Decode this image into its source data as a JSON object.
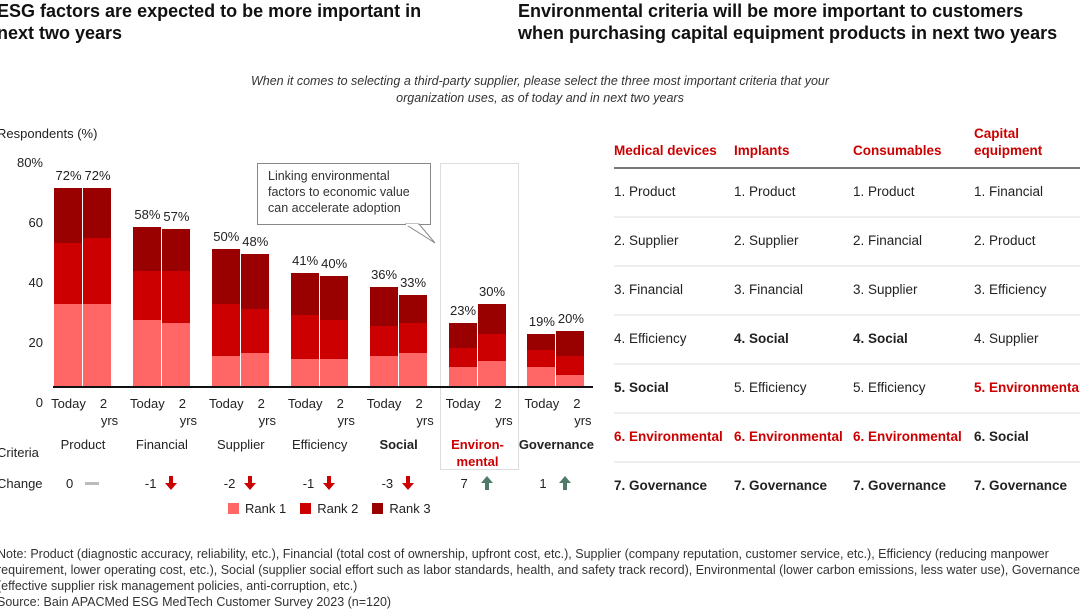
{
  "titles": {
    "left": "ESG factors are expected to be more important in next two years",
    "left_lines": [
      "ESG factors are expected to be more important in",
      "next two years"
    ],
    "right_lines": [
      "Environmental criteria will be more important to customers",
      "when purchasing capital equipment products in next two years"
    ]
  },
  "subtitle_lines": [
    "When it comes to selecting a third-party supplier, please select the three most important criteria that your",
    "organization uses, as of today and in next two years"
  ],
  "colors": {
    "rank1": "#ff6666",
    "rank2": "#cc0000",
    "rank3": "#990000",
    "accent_red": "#cc0000",
    "up_arrow": "#4f7a68",
    "neutral": "#bbbbbb"
  },
  "chart_data": {
    "type": "bar",
    "stacked": true,
    "ylabel": "Respondents (%)",
    "ylim": [
      0,
      80
    ],
    "yticks": [
      "0",
      "20",
      "40",
      "60",
      "80%"
    ],
    "ytick_values": [
      0,
      20,
      40,
      60,
      80
    ],
    "grid": false,
    "bar_labels": [
      "Today",
      "2 yrs"
    ],
    "criteria_label": "Criteria",
    "change_label": "Change",
    "legend_position": "bottom",
    "series": [
      {
        "name": "Rank 1",
        "color": "#ff6666"
      },
      {
        "name": "Rank 2",
        "color": "#cc0000"
      },
      {
        "name": "Rank 3",
        "color": "#990000"
      }
    ],
    "categories": [
      {
        "name": "Product",
        "style": "normal",
        "today": [
          30,
          22,
          20
        ],
        "two_yrs": [
          30,
          24,
          18
        ],
        "total_today": "72%",
        "total_two_yrs": "72%",
        "change": "0",
        "direction": "flat"
      },
      {
        "name": "Financial",
        "style": "normal",
        "today": [
          24,
          18,
          16
        ],
        "two_yrs": [
          23,
          19,
          15
        ],
        "total_today": "58%",
        "total_two_yrs": "57%",
        "change": "-1",
        "direction": "down"
      },
      {
        "name": "Supplier",
        "style": "normal",
        "today": [
          11,
          19,
          20
        ],
        "two_yrs": [
          12,
          16,
          20
        ],
        "total_today": "50%",
        "total_two_yrs": "48%",
        "change": "-2",
        "direction": "down"
      },
      {
        "name": "Efficiency",
        "style": "normal",
        "today": [
          10,
          16,
          15
        ],
        "two_yrs": [
          10,
          14,
          16
        ],
        "total_today": "41%",
        "total_two_yrs": "40%",
        "change": "-1",
        "direction": "down"
      },
      {
        "name": "Social",
        "style": "bold",
        "today": [
          11,
          11,
          14
        ],
        "two_yrs": [
          12,
          11,
          10
        ],
        "total_today": "36%",
        "total_two_yrs": "33%",
        "change": "-3",
        "direction": "down"
      },
      {
        "name": "Environ-mental",
        "name_lines": [
          "Environ-",
          "mental"
        ],
        "style": "red",
        "today": [
          7,
          7,
          9
        ],
        "two_yrs": [
          9,
          10,
          11
        ],
        "total_today": "23%",
        "total_two_yrs": "30%",
        "change": "7",
        "direction": "up"
      },
      {
        "name": "Governance",
        "style": "bold",
        "today": [
          7,
          6,
          6
        ],
        "two_yrs": [
          4,
          7,
          9
        ],
        "total_today": "19%",
        "total_two_yrs": "20%",
        "change": "1",
        "direction": "up"
      }
    ],
    "annotation_lines": [
      "Linking environmental",
      "factors to economic value",
      "can accelerate adoption"
    ]
  },
  "table": {
    "headers": [
      [
        "Medical devices"
      ],
      [
        "Implants"
      ],
      [
        "Consumables"
      ],
      [
        "Capital",
        "equipment"
      ]
    ],
    "columns": [
      [
        {
          "t": "1. Product",
          "s": "n"
        },
        {
          "t": "2. Supplier",
          "s": "n"
        },
        {
          "t": "3. Financial",
          "s": "n"
        },
        {
          "t": "4. Efficiency",
          "s": "n"
        },
        {
          "t": "5. Social",
          "s": "b"
        },
        {
          "t": "6. Environmental",
          "s": "r"
        },
        {
          "t": "7. Governance",
          "s": "b"
        }
      ],
      [
        {
          "t": "1. Product",
          "s": "n"
        },
        {
          "t": "2. Supplier",
          "s": "n"
        },
        {
          "t": "3. Financial",
          "s": "n"
        },
        {
          "t": "4. Social",
          "s": "b"
        },
        {
          "t": "5. Efficiency",
          "s": "n"
        },
        {
          "t": "6. Environmental",
          "s": "r"
        },
        {
          "t": "7. Governance",
          "s": "b"
        }
      ],
      [
        {
          "t": "1. Product",
          "s": "n"
        },
        {
          "t": "2. Financial",
          "s": "n"
        },
        {
          "t": "3. Supplier",
          "s": "n"
        },
        {
          "t": "4. Social",
          "s": "b"
        },
        {
          "t": "5. Efficiency",
          "s": "n"
        },
        {
          "t": "6. Environmental",
          "s": "r"
        },
        {
          "t": "7. Governance",
          "s": "b"
        }
      ],
      [
        {
          "t": "1. Financial",
          "s": "n"
        },
        {
          "t": "2. Product",
          "s": "n"
        },
        {
          "t": "3. Efficiency",
          "s": "n"
        },
        {
          "t": "4. Supplier",
          "s": "n"
        },
        {
          "t": "5. Environmental",
          "s": "r"
        },
        {
          "t": "6. Social",
          "s": "b"
        },
        {
          "t": "7. Governance",
          "s": "b"
        }
      ]
    ]
  },
  "footer": {
    "note": "Note: Product (diagnostic accuracy, reliability, etc.), Financial (total cost of ownership, upfront cost, etc.), Supplier (company reputation, customer service, etc.), Efficiency (reducing manpower requirement, lower operating cost, etc.), Social (supplier social effort such as labor standards, health, and safety track record), Environmental (lower carbon emissions, less water use), Governance (effective supplier risk management policies, anti-corruption, etc.)",
    "source": "Source: Bain APACMed ESG MedTech Customer Survey 2023 (n=120)"
  }
}
